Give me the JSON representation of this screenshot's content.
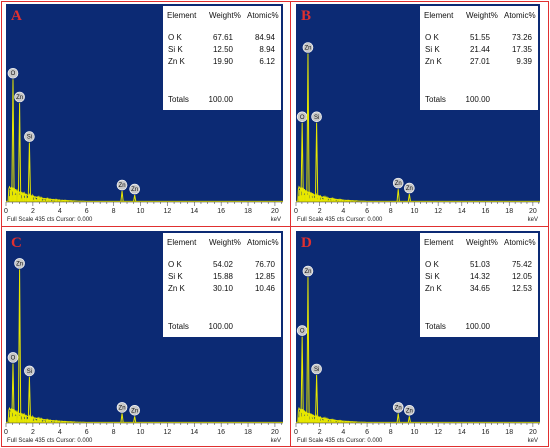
{
  "chart_data": [
    {
      "type": "line",
      "panel_label": "A",
      "x_unit": "keV",
      "x_ticks": [
        "0",
        "2",
        "4",
        "6",
        "8",
        "10",
        "12",
        "14",
        "16",
        "18",
        "20"
      ],
      "footer": "Full Scale 435 cts Cursor: 0.000",
      "table": {
        "headers": [
          "Element",
          "Weight%",
          "Atomic%"
        ],
        "rows": [
          [
            "O K",
            "67.61",
            "84.94"
          ],
          [
            "Si K",
            "12.50",
            "8.94"
          ],
          [
            "Zn K",
            "19.90",
            "6.12"
          ]
        ],
        "totals_label": "Totals",
        "totals_value": "100.00"
      },
      "peaks": [
        {
          "label": "O",
          "x": 0.52,
          "height": 0.62
        },
        {
          "label": "Zn",
          "x": 1.01,
          "height": 0.5
        },
        {
          "label": "Si",
          "x": 1.74,
          "height": 0.3
        },
        {
          "label": "Zn",
          "x": 8.63,
          "height": 0.055
        },
        {
          "label": "Zn",
          "x": 9.57,
          "height": 0.035
        }
      ],
      "xlim": [
        0,
        20.6
      ]
    },
    {
      "type": "line",
      "panel_label": "B",
      "x_unit": "keV",
      "x_ticks": [
        "0",
        "2",
        "4",
        "6",
        "8",
        "10",
        "12",
        "14",
        "16",
        "18",
        "20"
      ],
      "footer": "Full Scale 435 cts Cursor: 0.000",
      "table": {
        "headers": [
          "Element",
          "Weight%",
          "Atomic%"
        ],
        "rows": [
          [
            "O K",
            "51.55",
            "73.26"
          ],
          [
            "Si K",
            "21.44",
            "17.35"
          ],
          [
            "Zn K",
            "27.01",
            "9.39"
          ]
        ],
        "totals_label": "Totals",
        "totals_value": "100.00"
      },
      "peaks": [
        {
          "label": "O",
          "x": 0.52,
          "height": 0.4
        },
        {
          "label": "Zn",
          "x": 1.01,
          "height": 0.75
        },
        {
          "label": "Si",
          "x": 1.74,
          "height": 0.4
        },
        {
          "label": "Zn",
          "x": 8.63,
          "height": 0.065
        },
        {
          "label": "Zn",
          "x": 9.57,
          "height": 0.04
        }
      ],
      "xlim": [
        0,
        20.6
      ]
    },
    {
      "type": "line",
      "panel_label": "C",
      "x_unit": "keV",
      "x_ticks": [
        "0",
        "2",
        "4",
        "6",
        "8",
        "10",
        "12",
        "14",
        "16",
        "18",
        "20"
      ],
      "footer": "Full Scale 435 cts Cursor: 0.000",
      "table": {
        "headers": [
          "Element",
          "Weight%",
          "Atomic%"
        ],
        "rows": [
          [
            "O K",
            "54.02",
            "76.70"
          ],
          [
            "Si K",
            "15.88",
            "12.85"
          ],
          [
            "Zn K",
            "30.10",
            "10.46"
          ]
        ],
        "totals_label": "Totals",
        "totals_value": "100.00"
      },
      "peaks": [
        {
          "label": "O",
          "x": 0.52,
          "height": 0.31
        },
        {
          "label": "Zn",
          "x": 1.01,
          "height": 0.8
        },
        {
          "label": "Si",
          "x": 1.74,
          "height": 0.24
        },
        {
          "label": "Zn",
          "x": 8.63,
          "height": 0.05
        },
        {
          "label": "Zn",
          "x": 9.57,
          "height": 0.035
        }
      ],
      "xlim": [
        0,
        20.6
      ]
    },
    {
      "type": "line",
      "panel_label": "D",
      "x_unit": "keV",
      "x_ticks": [
        "0",
        "2",
        "4",
        "6",
        "8",
        "10",
        "12",
        "14",
        "16",
        "18",
        "20"
      ],
      "footer": "Full Scale 435 cts Cursor: 0.000",
      "table": {
        "headers": [
          "Element",
          "Weight%",
          "Atomic%"
        ],
        "rows": [
          [
            "O K",
            "51.03",
            "75.42"
          ],
          [
            "Si K",
            "14.32",
            "12.05"
          ],
          [
            "Zn K",
            "34.65",
            "12.53"
          ]
        ],
        "totals_label": "Totals",
        "totals_value": "100.00"
      },
      "peaks": [
        {
          "label": "O",
          "x": 0.52,
          "height": 0.45
        },
        {
          "label": "Zn",
          "x": 1.01,
          "height": 0.76
        },
        {
          "label": "Si",
          "x": 1.74,
          "height": 0.25
        },
        {
          "label": "Zn",
          "x": 8.63,
          "height": 0.05
        },
        {
          "label": "Zn",
          "x": 9.57,
          "height": 0.035
        }
      ],
      "xlim": [
        0,
        20.6
      ]
    }
  ],
  "colors": {
    "plot_background": "#0c2a74",
    "spectrum": "#e8e800",
    "panel_letter": "#e03030",
    "frame": "#e03030",
    "peak_marker": "#c8c8c8"
  }
}
